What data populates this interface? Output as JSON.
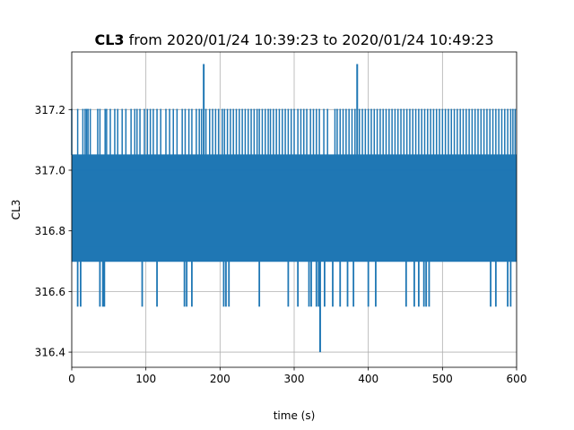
{
  "chart_data": {
    "type": "line",
    "title_bold": "CL3",
    "title_rest": " from 2020/01/24 10:39:23 to 2020/01/24 10:49:23",
    "xlabel": "time (s)",
    "ylabel": "CL3",
    "xlim": [
      0,
      600
    ],
    "ylim": [
      316.35,
      317.39
    ],
    "xticks": [
      0,
      100,
      200,
      300,
      400,
      500,
      600
    ],
    "yticks": [
      316.4,
      316.6,
      316.8,
      317.0,
      317.2
    ],
    "xtick_labels": [
      "0",
      "100",
      "200",
      "300",
      "400",
      "500",
      "600"
    ],
    "ytick_labels": [
      "316.4",
      "316.6",
      "316.8",
      "317.0",
      "317.2"
    ],
    "grid": true,
    "line_color": "#1f77b4",
    "series": [
      {
        "dense_band": {
          "low": 316.7,
          "high": 317.05
        },
        "common_levels": [
          316.7,
          316.75,
          316.85,
          316.9,
          317.0,
          317.05
        ],
        "spikes_up_317_2_times": [
          0,
          8,
          15,
          18,
          20,
          22,
          25,
          35,
          38,
          45,
          47,
          52,
          58,
          62,
          68,
          73,
          80,
          85,
          88,
          92,
          98,
          102,
          106,
          110,
          115,
          120,
          127,
          132,
          137,
          142,
          149,
          153,
          158,
          162,
          168,
          172,
          175,
          181,
          186,
          190,
          194,
          198,
          203,
          206,
          210,
          214,
          218,
          222,
          226,
          230,
          234,
          238,
          242,
          246,
          250,
          253,
          257,
          261,
          265,
          268,
          272,
          276,
          280,
          284,
          288,
          292,
          296,
          300,
          305,
          309,
          313,
          317,
          322,
          326,
          330,
          334,
          340,
          345,
          355,
          358,
          362,
          366,
          370,
          374,
          378,
          382,
          388,
          392,
          396,
          400,
          404,
          408,
          412,
          416,
          420,
          424,
          428,
          432,
          436,
          440,
          444,
          448,
          452,
          456,
          460,
          464,
          468,
          472,
          476,
          480,
          484,
          488,
          492,
          496,
          500,
          504,
          508,
          512,
          516,
          520,
          524,
          528,
          532,
          536,
          540,
          544,
          548,
          552,
          556,
          560,
          564,
          568,
          572,
          576,
          580,
          584,
          588,
          592,
          595,
          598
        ],
        "spikes_up_317_35_times": [
          178,
          385
        ],
        "dips_316_55_times": [
          8,
          12,
          38,
          42,
          44,
          95,
          115,
          152,
          155,
          162,
          205,
          208,
          212,
          253,
          292,
          305,
          320,
          323,
          330,
          333,
          341,
          352,
          362,
          372,
          380,
          400,
          410,
          451,
          462,
          468,
          475,
          478,
          482,
          565,
          572,
          588,
          592
        ],
        "dip_316_4_times": [
          335
        ]
      }
    ]
  }
}
